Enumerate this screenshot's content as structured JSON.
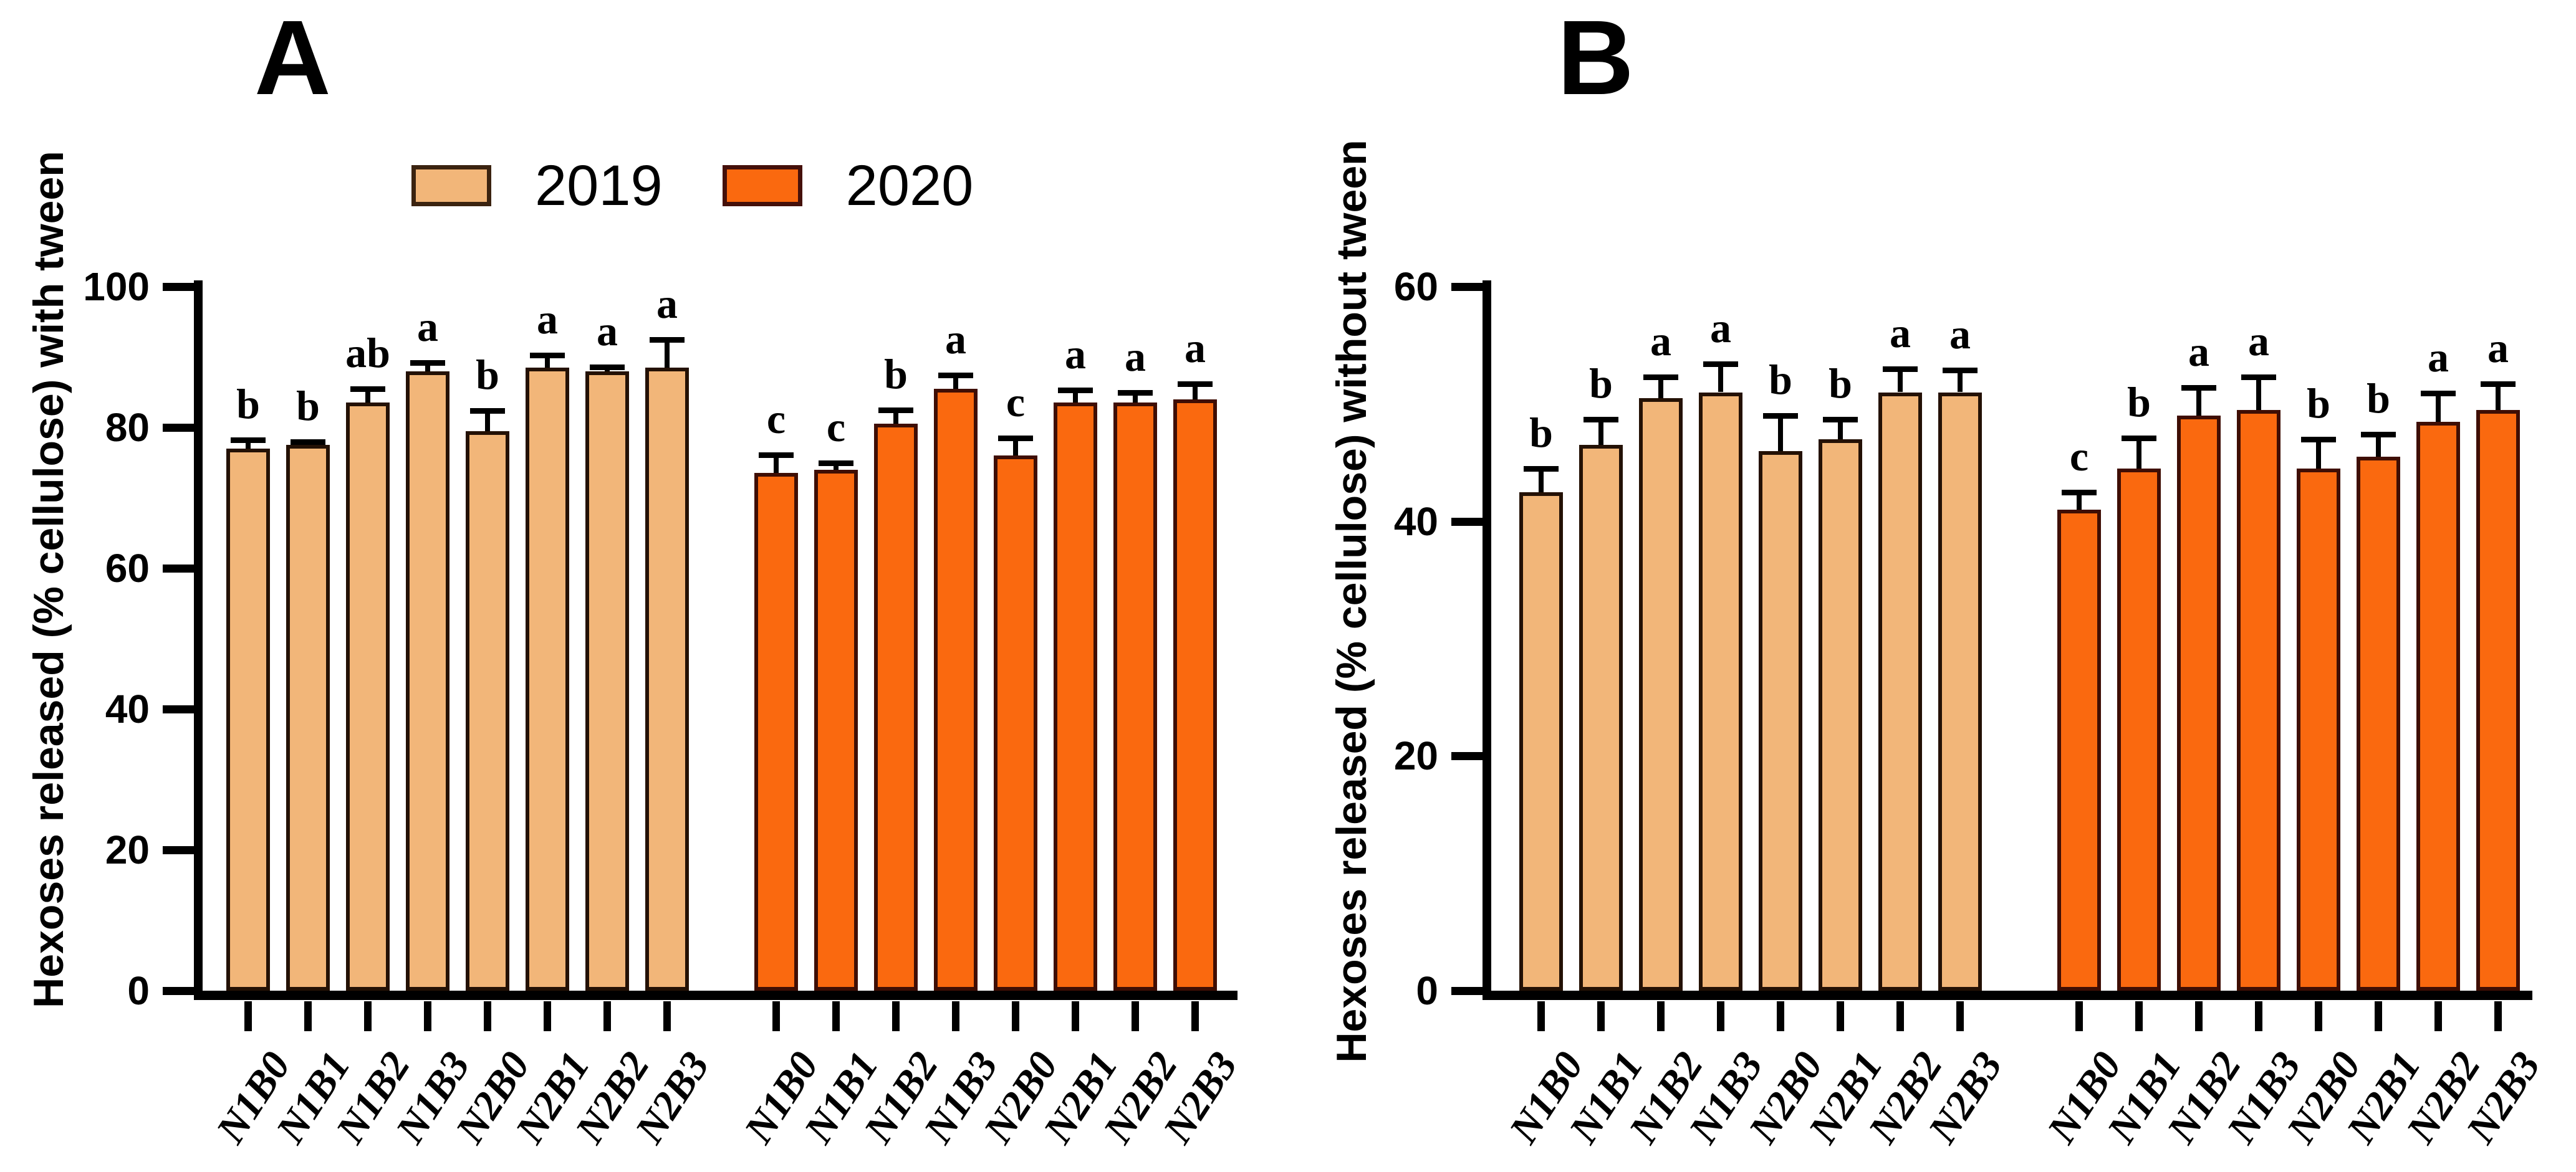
{
  "legend": {
    "items": [
      {
        "label": "2019",
        "color": "#f2b679",
        "edge_color": "#3b2310"
      },
      {
        "label": "2020",
        "color": "#fa690f",
        "edge_color": "#45100a"
      }
    ]
  },
  "chart_data": [
    {
      "type": "bar",
      "panel_label": "A",
      "ylabel": "Hexoses released (% cellulose) with tween",
      "xlabel": "",
      "ylim": [
        0,
        100
      ],
      "yticks": [
        0,
        20,
        40,
        60,
        80,
        100
      ],
      "grid": false,
      "legend_position": "top",
      "categories": [
        "N1B0",
        "N1B1",
        "N1B2",
        "N1B3",
        "N2B0",
        "N2B1",
        "N2B2",
        "N2B3"
      ],
      "series": [
        {
          "name": "2019",
          "color": "#f2b679",
          "edge_color": "#241105",
          "values": [
            77,
            77.5,
            83.5,
            88,
            79.5,
            88.5,
            88,
            88.5
          ],
          "errors": [
            1.2,
            0.5,
            2.0,
            1.2,
            2.9,
            1.8,
            0.6,
            4.0
          ],
          "sig_letters": [
            "b",
            "b",
            "ab",
            "a",
            "b",
            "a",
            "a",
            "a"
          ]
        },
        {
          "name": "2020",
          "color": "#fa690f",
          "edge_color": "#3f0e04",
          "values": [
            73.5,
            74,
            80.5,
            85.5,
            76,
            83.5,
            83.5,
            84
          ],
          "errors": [
            2.6,
            1.0,
            2.0,
            1.9,
            2.5,
            1.8,
            1.5,
            2.2
          ],
          "sig_letters": [
            "c",
            "c",
            "b",
            "a",
            "c",
            "a",
            "a",
            "a"
          ]
        }
      ]
    },
    {
      "type": "bar",
      "panel_label": "B",
      "ylabel": "Hexoses released (% cellulose) without tween",
      "xlabel": "",
      "ylim": [
        0,
        60
      ],
      "yticks": [
        0,
        20,
        40,
        60
      ],
      "grid": false,
      "legend_position": "none",
      "categories": [
        "N1B0",
        "N1B1",
        "N1B2",
        "N1B3",
        "N2B0",
        "N2B1",
        "N2B2",
        "N2B3"
      ],
      "series": [
        {
          "name": "2019",
          "color": "#f2b679",
          "edge_color": "#241105",
          "values": [
            42.5,
            46.5,
            50.5,
            51,
            46,
            47,
            51,
            51
          ],
          "errors": [
            2.0,
            2.2,
            1.8,
            2.4,
            3.0,
            1.7,
            2.0,
            1.9
          ],
          "sig_letters": [
            "b",
            "b",
            "a",
            "a",
            "b",
            "b",
            "a",
            "a"
          ]
        },
        {
          "name": "2020",
          "color": "#fa690f",
          "edge_color": "#3f0e04",
          "values": [
            41,
            44.5,
            49,
            49.5,
            44.5,
            45.5,
            48.5,
            49.5
          ],
          "errors": [
            1.5,
            2.6,
            2.4,
            2.8,
            2.5,
            1.9,
            2.4,
            2.2
          ],
          "sig_letters": [
            "c",
            "b",
            "a",
            "a",
            "b",
            "b",
            "a",
            "a"
          ]
        }
      ]
    }
  ]
}
